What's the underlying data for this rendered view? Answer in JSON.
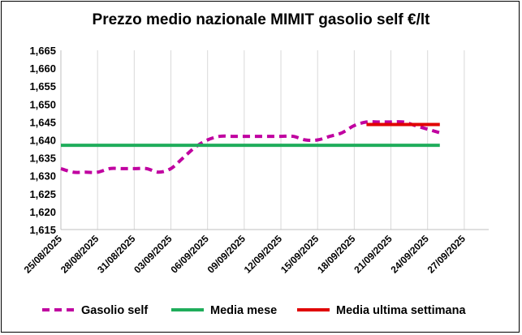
{
  "chart_data": {
    "type": "line",
    "title": "Prezzo medio nazionale MIMIT gasolio self €/lt",
    "xlabel": "",
    "ylabel": "",
    "ylim": [
      1.615,
      1.665
    ],
    "ytick_labels": [
      "1,615",
      "1,620",
      "1,625",
      "1,630",
      "1,635",
      "1,640",
      "1,645",
      "1,650",
      "1,655",
      "1,660",
      "1,665"
    ],
    "xtick_labels": [
      "25/08/2025",
      "28/08/2025",
      "31/08/2025",
      "03/09/2025",
      "06/09/2025",
      "09/09/2025",
      "12/09/2025",
      "15/09/2025",
      "18/09/2025",
      "21/09/2025",
      "24/09/2025",
      "27/09/2025"
    ],
    "x": [
      "25/08/2025",
      "26/08/2025",
      "27/08/2025",
      "28/08/2025",
      "29/08/2025",
      "30/08/2025",
      "31/08/2025",
      "01/09/2025",
      "02/09/2025",
      "03/09/2025",
      "04/09/2025",
      "05/09/2025",
      "06/09/2025",
      "07/09/2025",
      "08/09/2025",
      "09/09/2025",
      "10/09/2025",
      "11/09/2025",
      "12/09/2025",
      "13/09/2025",
      "14/09/2025",
      "15/09/2025",
      "16/09/2025",
      "17/09/2025",
      "18/09/2025",
      "19/09/2025",
      "20/09/2025",
      "21/09/2025",
      "22/09/2025",
      "23/09/2025",
      "24/09/2025",
      "25/09/2025"
    ],
    "series": [
      {
        "name": "Gasolio self",
        "style": "dashed",
        "color": "#C000A0",
        "values": [
          1.632,
          1.631,
          1.631,
          1.631,
          1.632,
          1.632,
          1.632,
          1.632,
          1.631,
          1.632,
          1.635,
          1.638,
          1.64,
          1.641,
          1.641,
          1.641,
          1.641,
          1.641,
          1.641,
          1.641,
          1.64,
          1.64,
          1.641,
          1.642,
          1.644,
          1.645,
          1.645,
          1.645,
          1.645,
          1.644,
          1.643,
          1.642
        ]
      },
      {
        "name": "Media mese",
        "style": "solid",
        "color": "#1FAD5B",
        "values": [
          1.6385,
          1.6385,
          1.6385,
          1.6385,
          1.6385,
          1.6385,
          1.6385,
          1.6385,
          1.6385,
          1.6385,
          1.6385,
          1.6385,
          1.6385,
          1.6385,
          1.6385,
          1.6385,
          1.6385,
          1.6385,
          1.6385,
          1.6385,
          1.6385,
          1.6385,
          1.6385,
          1.6385,
          1.6385,
          1.6385,
          1.6385,
          1.6385,
          1.6385,
          1.6385,
          1.6385,
          1.6385
        ]
      },
      {
        "name": "Media ultima settimana",
        "style": "solid",
        "color": "#E00000",
        "values": [
          null,
          null,
          null,
          null,
          null,
          null,
          null,
          null,
          null,
          null,
          null,
          null,
          null,
          null,
          null,
          null,
          null,
          null,
          null,
          null,
          null,
          null,
          null,
          null,
          null,
          1.6443,
          1.6443,
          1.6443,
          1.6443,
          1.6443,
          1.6443,
          1.6443
        ]
      }
    ],
    "grid": "vertical",
    "legend_position": "bottom"
  }
}
